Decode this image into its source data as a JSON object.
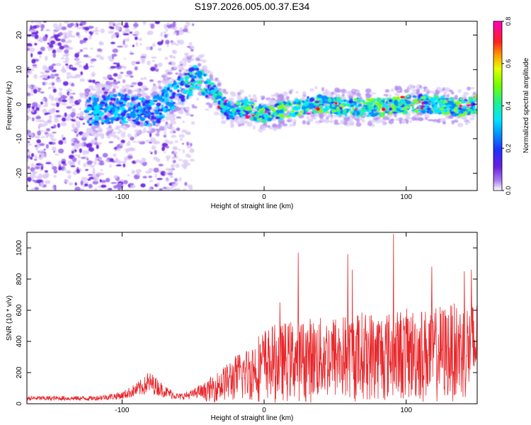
{
  "title": "S197.2026.005.00.37.E34",
  "colors": {
    "snr_line": "#e8262a",
    "axis": "#000000",
    "colormap": [
      "#ffffff",
      "#7a2ee0",
      "#3b2cff",
      "#0090ff",
      "#00e6ff",
      "#29f0a0",
      "#7cff00",
      "#ffee00",
      "#ff8000",
      "#ff1010",
      "#ff00b0"
    ]
  },
  "chart_data": [
    {
      "type": "heatmap",
      "name": "spectrogram",
      "xlabel": "Height of straight line (km)",
      "ylabel": "Frequency (Hz)",
      "xlim": [
        -167,
        150
      ],
      "ylim": [
        -25,
        24
      ],
      "xticks": [
        -100,
        0,
        100
      ],
      "yticks": [
        -20,
        -10,
        0,
        10,
        20
      ],
      "grid": false,
      "colorbar": {
        "label": "Normalized spectral amplitude",
        "range": [
          0.0,
          0.8
        ],
        "ticks": [
          "0.0",
          "0.2",
          "0.4",
          "0.6",
          "0.8"
        ]
      },
      "ridge": {
        "description_points_x": [
          -120,
          -100,
          -80,
          -60,
          -45,
          -35,
          -25,
          -15,
          0,
          20,
          40,
          60,
          80,
          100,
          120,
          140,
          150
        ],
        "description_points_y": [
          -2,
          -1,
          -3,
          4,
          8,
          3,
          -2,
          -1,
          -3,
          -1,
          0,
          -1,
          -1,
          0,
          0,
          -1,
          0
        ]
      }
    },
    {
      "type": "line",
      "name": "snr",
      "xlabel": "Height of straight line (km)",
      "ylabel": "SNR (10 * v/v)",
      "xlim": [
        -167,
        150
      ],
      "ylim": [
        0,
        1100
      ],
      "xticks": [
        -100,
        0,
        100
      ],
      "yticks": [
        0,
        200,
        400,
        600,
        800,
        1000
      ],
      "grid": false,
      "envelope": {
        "x": [
          -167,
          -120,
          -100,
          -90,
          -80,
          -70,
          -60,
          -50,
          -40,
          -30,
          -20,
          -10,
          0,
          10,
          20,
          40,
          60,
          80,
          100,
          120,
          140,
          150
        ],
        "y": [
          30,
          30,
          50,
          90,
          140,
          80,
          40,
          60,
          110,
          180,
          240,
          300,
          380,
          400,
          420,
          440,
          460,
          470,
          480,
          490,
          520,
          540
        ]
      },
      "peaks": [
        {
          "x": -82,
          "y": 195
        },
        {
          "x": 11,
          "y": 650
        },
        {
          "x": 24,
          "y": 970
        },
        {
          "x": 59,
          "y": 960
        },
        {
          "x": 62,
          "y": 860
        },
        {
          "x": 91,
          "y": 1090
        },
        {
          "x": 118,
          "y": 880
        },
        {
          "x": 141,
          "y": 850
        },
        {
          "x": 146,
          "y": 860
        }
      ]
    }
  ]
}
